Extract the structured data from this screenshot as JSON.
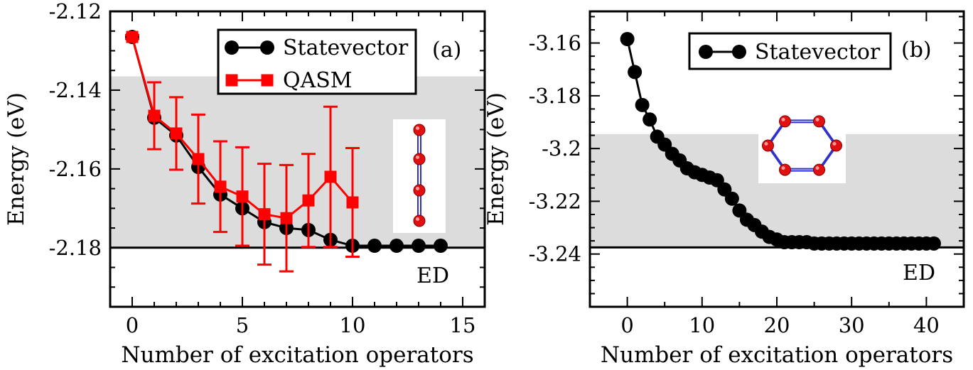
{
  "chart_data": [
    {
      "type": "line",
      "panel_label": "(a)",
      "xlabel": "Number of excitation operators",
      "ylabel": "Energy (eV)",
      "xlim": [
        -1,
        16
      ],
      "ylim": [
        -2.195,
        -2.12
      ],
      "xticks": [
        0,
        5,
        10,
        15
      ],
      "xtick_labels": [
        "0",
        "5",
        "10",
        "15"
      ],
      "yticks": [
        -2.12,
        -2.14,
        -2.16,
        -2.18
      ],
      "ytick_labels": [
        "-2.12",
        "-2.14",
        "-2.16",
        "-2.18"
      ],
      "shaded_band": [
        -2.18,
        -2.1365
      ],
      "reference_line": {
        "label": "ED",
        "value": -2.18
      },
      "legend_position": "top-right",
      "inset": "linear 4-atom chain",
      "series": [
        {
          "name": "Statevector",
          "color": "#000000",
          "marker": "circle",
          "x": [
            0,
            1,
            2,
            3,
            4,
            5,
            6,
            7,
            8,
            9,
            10,
            11,
            12,
            13,
            14
          ],
          "y": [
            -2.1265,
            -2.147,
            -2.1515,
            -2.1595,
            -2.1665,
            -2.17,
            -2.1735,
            -2.175,
            -2.1755,
            -2.178,
            -2.1795,
            -2.1795,
            -2.1795,
            -2.1795,
            -2.1795
          ]
        },
        {
          "name": "QASM",
          "color": "#ff0000",
          "marker": "square",
          "x": [
            0,
            1,
            2,
            3,
            4,
            5,
            6,
            7,
            8,
            9,
            10
          ],
          "y": [
            -2.1265,
            -2.1465,
            -2.151,
            -2.1575,
            -2.1645,
            -2.167,
            -2.1715,
            -2.1725,
            -2.168,
            -2.162,
            -2.1685
          ],
          "error": [
            0.0005,
            0.0085,
            0.0092,
            0.0113,
            0.0115,
            0.0125,
            0.0128,
            0.0135,
            0.0118,
            0.0178,
            0.0138
          ]
        }
      ]
    },
    {
      "type": "line",
      "panel_label": "(b)",
      "xlabel": "Number of excitation operators",
      "ylabel": "Energy (eV)",
      "xlim": [
        -5,
        45
      ],
      "ylim": [
        -3.26,
        -3.148
      ],
      "xticks": [
        0,
        10,
        20,
        30,
        40
      ],
      "xtick_labels": [
        "0",
        "10",
        "20",
        "30",
        "40"
      ],
      "yticks": [
        -3.16,
        -3.18,
        -3.2,
        -3.22,
        -3.24
      ],
      "ytick_labels": [
        "-3.16",
        "-3.18",
        "-3.2",
        "-3.22",
        "-3.24"
      ],
      "shaded_band": [
        -3.2375,
        -3.1945
      ],
      "reference_line": {
        "label": "ED",
        "value": -3.2375
      },
      "legend_position": "top-right",
      "inset": "hexagonal 6-atom ring",
      "series": [
        {
          "name": "Statevector",
          "color": "#000000",
          "marker": "circle",
          "x": [
            0,
            1,
            2,
            3,
            4,
            5,
            6,
            7,
            8,
            9,
            10,
            11,
            12,
            13,
            14,
            15,
            16,
            17,
            18,
            19,
            20,
            21,
            22,
            23,
            24,
            25,
            26,
            27,
            28,
            29,
            30,
            31,
            32,
            33,
            34,
            35,
            36,
            37,
            38,
            39,
            40,
            41
          ],
          "y": [
            -3.1585,
            -3.171,
            -3.1835,
            -3.189,
            -3.1955,
            -3.1985,
            -3.202,
            -3.2045,
            -3.2075,
            -3.209,
            -3.21,
            -3.211,
            -3.212,
            -3.2155,
            -3.219,
            -3.2235,
            -3.227,
            -3.229,
            -3.2315,
            -3.2335,
            -3.2345,
            -3.2355,
            -3.2355,
            -3.2355,
            -3.2355,
            -3.236,
            -3.236,
            -3.236,
            -3.236,
            -3.236,
            -3.236,
            -3.236,
            -3.236,
            -3.236,
            -3.236,
            -3.236,
            -3.236,
            -3.236,
            -3.236,
            -3.236,
            -3.236,
            -3.236
          ]
        }
      ]
    }
  ]
}
